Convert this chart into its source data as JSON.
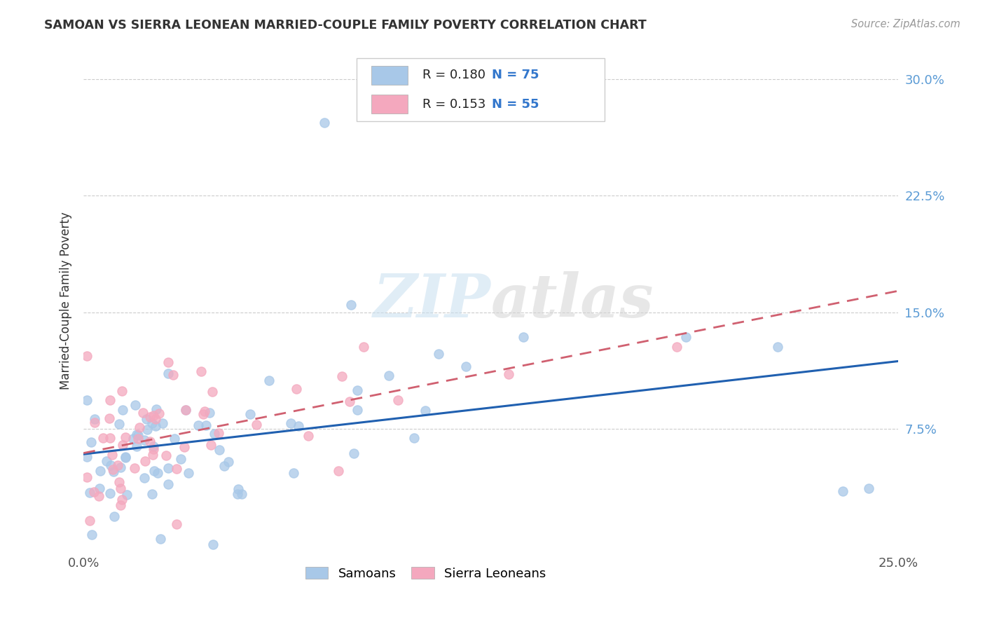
{
  "title": "SAMOAN VS SIERRA LEONEAN MARRIED-COUPLE FAMILY POVERTY CORRELATION CHART",
  "source": "Source: ZipAtlas.com",
  "ylabel": "Married-Couple Family Poverty",
  "xlim": [
    0.0,
    0.25
  ],
  "ylim": [
    -0.005,
    0.32
  ],
  "background_color": "#ffffff",
  "grid_color": "#cccccc",
  "watermark_zip": "ZIP",
  "watermark_atlas": "atlas",
  "samoan_color": "#a8c8e8",
  "sierra_color": "#f4a8be",
  "samoan_line_color": "#2060b0",
  "sierra_line_color": "#d06070",
  "R_samoan": 0.18,
  "N_samoan": 75,
  "R_sierra": 0.153,
  "N_sierra": 55,
  "legend_R1": "R = 0.180",
  "legend_N1": "N = 75",
  "legend_R2": "R = 0.153",
  "legend_N2": "N = 55",
  "samoan_label": "Samoans",
  "sierra_label": "Sierra Leoneans"
}
